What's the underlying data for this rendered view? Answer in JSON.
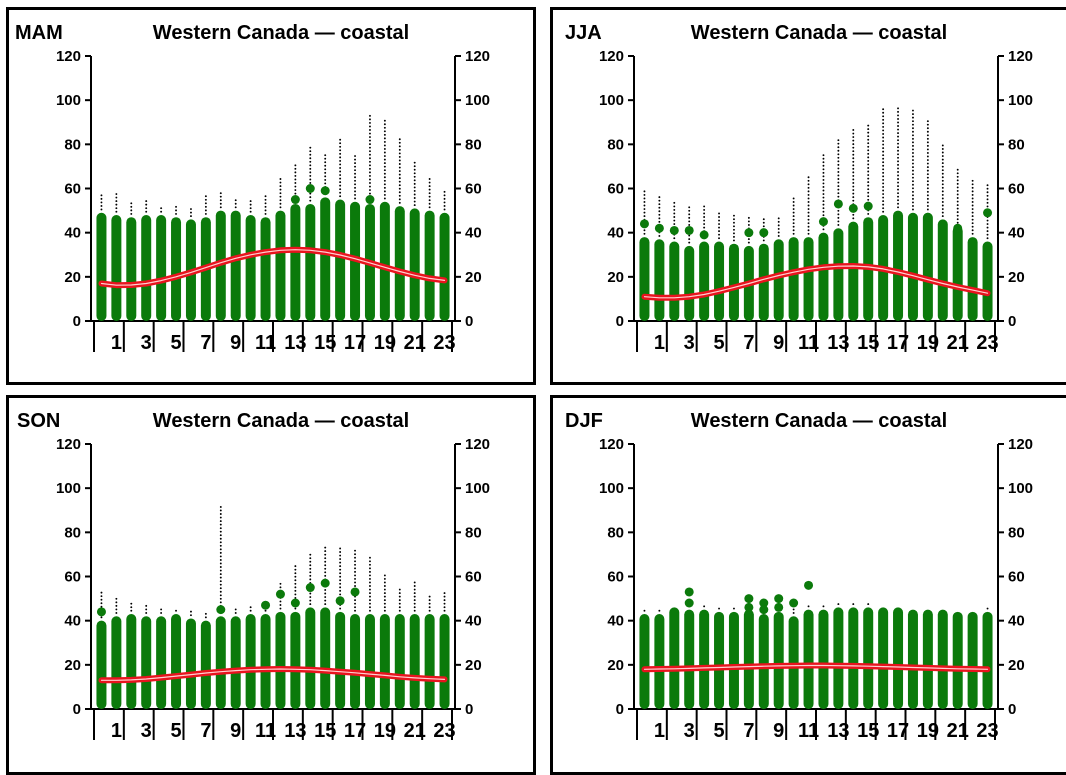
{
  "colors": {
    "bars": "#0b7a0b",
    "curve": "#e8141e",
    "curve_core": "#ffd0d0",
    "outliers": "#000000"
  },
  "chart_data": [
    {
      "type": "scatter",
      "season": "MAM",
      "title": "Western Canada — coastal",
      "ylim": [
        0,
        120
      ],
      "yticks": [
        0,
        20,
        40,
        60,
        80,
        100,
        120
      ],
      "xticks": [
        1,
        3,
        5,
        7,
        9,
        11,
        13,
        15,
        17,
        19,
        21,
        23
      ],
      "hours": [
        0,
        1,
        2,
        3,
        4,
        5,
        6,
        7,
        8,
        9,
        10,
        11,
        12,
        13,
        14,
        15,
        16,
        17,
        18,
        19,
        20,
        21,
        22,
        23
      ],
      "bar_top": [
        49,
        48,
        47,
        48,
        48,
        47,
        46,
        47,
        50,
        50,
        48,
        47,
        50,
        53,
        53,
        56,
        55,
        54,
        53,
        54,
        52,
        51,
        50,
        49
      ],
      "dots": [
        [],
        [],
        [],
        [],
        [],
        [],
        [],
        [],
        [],
        [],
        [],
        [],
        [],
        [
          55
        ],
        [
          60
        ],
        [
          59
        ],
        [],
        [],
        [
          55
        ],
        [],
        [],
        [],
        [],
        []
      ],
      "outlier_max": [
        57,
        58,
        54,
        55,
        52,
        52,
        51,
        58,
        58,
        56,
        55,
        57,
        65,
        72,
        79,
        76,
        83,
        75,
        93,
        92,
        83,
        73,
        65,
        60
      ],
      "curve": [
        17,
        16.2,
        16.3,
        17,
        18.3,
        20,
        22,
        24.2,
        26.4,
        28.4,
        30,
        31.2,
        32,
        32.3,
        32,
        31.2,
        29.9,
        28.2,
        26.3,
        24.3,
        22.4,
        20.7,
        19.3,
        18.4
      ]
    },
    {
      "type": "scatter",
      "season": "JJA",
      "title": "Western Canada — coastal",
      "ylim": [
        0,
        120
      ],
      "yticks": [
        0,
        20,
        40,
        60,
        80,
        100,
        120
      ],
      "xticks": [
        1,
        3,
        5,
        7,
        9,
        11,
        13,
        15,
        17,
        19,
        21,
        23
      ],
      "hours": [
        0,
        1,
        2,
        3,
        4,
        5,
        6,
        7,
        8,
        9,
        10,
        11,
        12,
        13,
        14,
        15,
        16,
        17,
        18,
        19,
        20,
        21,
        22,
        23
      ],
      "bar_top": [
        38,
        37,
        36,
        34,
        36,
        36,
        35,
        34,
        35,
        37,
        38,
        38,
        40,
        42,
        45,
        47,
        48,
        50,
        49,
        49,
        46,
        43,
        38,
        36
      ],
      "dots": [
        [
          44
        ],
        [
          42
        ],
        [
          41
        ],
        [
          41
        ],
        [
          39
        ],
        [],
        [],
        [
          40
        ],
        [
          40
        ],
        [],
        [],
        [],
        [
          45
        ],
        [
          53
        ],
        [
          51
        ],
        [
          52
        ],
        [],
        [],
        [],
        [
          47
        ],
        [
          43
        ],
        [
          42
        ],
        [],
        [
          49
        ]
      ],
      "outlier_max": [
        60,
        57,
        55,
        53,
        52,
        49,
        48,
        47,
        47,
        48,
        56,
        66,
        76,
        83,
        87,
        90,
        96,
        97,
        96,
        92,
        80,
        69,
        65,
        63
      ],
      "curve": [
        11,
        10.5,
        10.5,
        11,
        12,
        13.5,
        15.2,
        17,
        18.9,
        20.6,
        22.1,
        23.4,
        24.3,
        24.8,
        24.9,
        24.5,
        23.6,
        22.2,
        20.5,
        18.7,
        17,
        15.4,
        14,
        12.6
      ]
    },
    {
      "type": "scatter",
      "season": "SON",
      "title": "Western Canada — coastal",
      "ylim": [
        0,
        120
      ],
      "yticks": [
        0,
        20,
        40,
        60,
        80,
        100,
        120
      ],
      "xticks": [
        1,
        3,
        5,
        7,
        9,
        11,
        13,
        15,
        17,
        19,
        21,
        23
      ],
      "hours": [
        0,
        1,
        2,
        3,
        4,
        5,
        6,
        7,
        8,
        9,
        10,
        11,
        12,
        13,
        14,
        15,
        16,
        17,
        18,
        19,
        20,
        21,
        22,
        23
      ],
      "bar_top": [
        40,
        42,
        43,
        42,
        42,
        43,
        41,
        40,
        42,
        42,
        43,
        43,
        44,
        44,
        46,
        46,
        44,
        43,
        43,
        43,
        43,
        43,
        43,
        43
      ],
      "dots": [
        [
          44
        ],
        [],
        [],
        [],
        [],
        [],
        [],
        [],
        [
          45
        ],
        [],
        [],
        [
          47
        ],
        [
          52
        ],
        [
          48
        ],
        [
          55
        ],
        [
          57
        ],
        [
          49
        ],
        [
          53
        ],
        [],
        [],
        [],
        [],
        [],
        []
      ],
      "outlier_max": [
        53,
        51,
        48,
        47,
        46,
        45,
        45,
        44,
        93,
        46,
        47,
        49,
        57,
        66,
        70,
        74,
        73,
        73,
        70,
        61,
        55,
        58,
        52,
        53
      ],
      "curve": [
        13,
        13,
        13.2,
        13.6,
        14.2,
        14.9,
        15.6,
        16.3,
        16.9,
        17.4,
        17.8,
        18,
        18.1,
        18,
        17.8,
        17.4,
        16.9,
        16.4,
        15.8,
        15.2,
        14.6,
        14.1,
        13.7,
        13.4
      ]
    },
    {
      "type": "scatter",
      "season": "DJF",
      "title": "Western Canada — coastal",
      "ylim": [
        0,
        120
      ],
      "yticks": [
        0,
        20,
        40,
        60,
        80,
        100,
        120
      ],
      "xticks": [
        1,
        3,
        5,
        7,
        9,
        11,
        13,
        15,
        17,
        19,
        21,
        23
      ],
      "hours": [
        0,
        1,
        2,
        3,
        4,
        5,
        6,
        7,
        8,
        9,
        10,
        11,
        12,
        13,
        14,
        15,
        16,
        17,
        18,
        19,
        20,
        21,
        22,
        23
      ],
      "bar_top": [
        43,
        43,
        46,
        45,
        45,
        44,
        44,
        45,
        43,
        44,
        42,
        45,
        45,
        46,
        46,
        46,
        46,
        46,
        45,
        45,
        45,
        44,
        44,
        44
      ],
      "dots": [
        [],
        [],
        [],
        [
          53,
          48
        ],
        [],
        [],
        [],
        [
          50,
          46
        ],
        [
          48,
          45
        ],
        [
          50,
          46
        ],
        [
          48
        ],
        [
          56
        ],
        [],
        [],
        [],
        [],
        [],
        [],
        [],
        [],
        [],
        [],
        [],
        []
      ],
      "outlier_max": [
        46,
        45,
        47,
        48,
        47,
        46,
        46,
        47,
        47,
        46,
        46,
        47,
        47,
        48,
        48,
        48,
        47,
        47,
        46,
        46,
        46,
        45,
        45,
        46
      ],
      "curve": [
        18,
        18.1,
        18.2,
        18.4,
        18.6,
        18.8,
        19,
        19.2,
        19.4,
        19.5,
        19.6,
        19.7,
        19.7,
        19.6,
        19.5,
        19.4,
        19.2,
        19,
        18.8,
        18.6,
        18.4,
        18.2,
        18.1,
        18
      ]
    }
  ]
}
